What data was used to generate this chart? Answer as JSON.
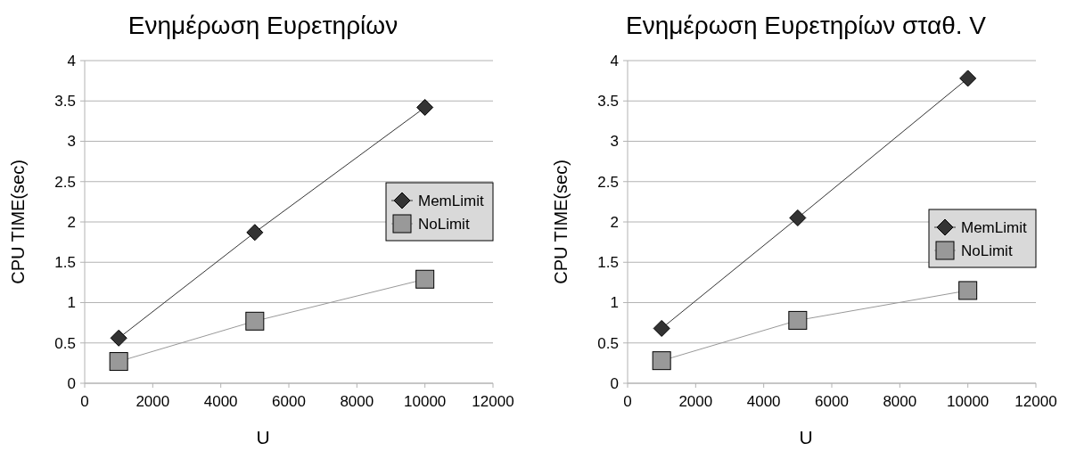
{
  "chart_data": [
    {
      "type": "line",
      "title": "Ενημέρωση Ευρετηρίων",
      "xlabel": "U",
      "ylabel": "CPU TIME(sec)",
      "x": [
        1000,
        5000,
        10000
      ],
      "xlim": [
        0,
        12000
      ],
      "xticks": [
        0,
        2000,
        4000,
        6000,
        8000,
        10000,
        12000
      ],
      "ylim": [
        0,
        4
      ],
      "yticks": [
        0,
        0.5,
        1,
        1.5,
        2,
        2.5,
        3,
        3.5,
        4
      ],
      "grid": "y",
      "legend": "right",
      "series": [
        {
          "name": "MemLimit",
          "color": "#333333",
          "marker": "diamond",
          "values": [
            0.56,
            1.87,
            3.42
          ]
        },
        {
          "name": "NoLimit",
          "color": "#999999",
          "marker": "square",
          "values": [
            0.27,
            0.77,
            1.29
          ]
        }
      ]
    },
    {
      "type": "line",
      "title": "Ενημέρωση Ευρετηρίων σταθ. V",
      "xlabel": "U",
      "ylabel": "CPU TIME(sec)",
      "x": [
        1000,
        5000,
        10000
      ],
      "xlim": [
        0,
        12000
      ],
      "xticks": [
        0,
        2000,
        4000,
        6000,
        8000,
        10000,
        12000
      ],
      "ylim": [
        0,
        4
      ],
      "yticks": [
        0,
        0.5,
        1,
        1.5,
        2,
        2.5,
        3,
        3.5,
        4
      ],
      "grid": "y",
      "legend": "right",
      "series": [
        {
          "name": "MemLimit",
          "color": "#333333",
          "marker": "diamond",
          "values": [
            0.68,
            2.05,
            3.78
          ]
        },
        {
          "name": "NoLimit",
          "color": "#999999",
          "marker": "square",
          "values": [
            0.28,
            0.78,
            1.15
          ]
        }
      ]
    }
  ]
}
